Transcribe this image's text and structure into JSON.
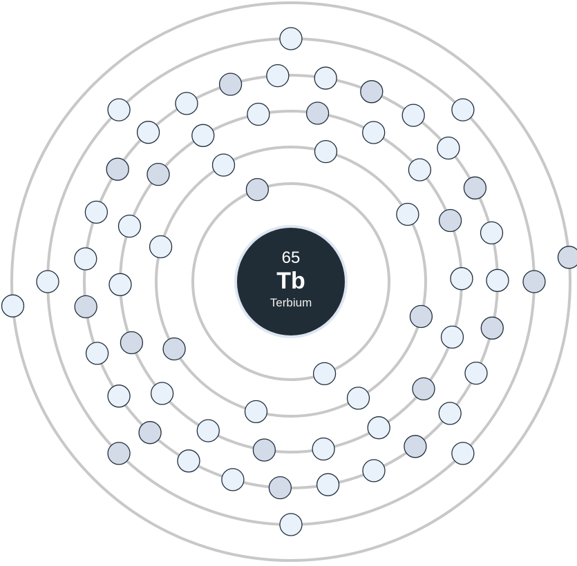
{
  "element": {
    "atomic_number": "65",
    "symbol": "Tb",
    "name": "Terbium"
  },
  "shells": [
    {
      "electrons": 2,
      "phase_deg": 250
    },
    {
      "electrons": 8,
      "phase_deg": 285
    },
    {
      "electrons": 18,
      "phase_deg": 259
    },
    {
      "electrons": 27,
      "phase_deg": 293
    },
    {
      "electrons": 8,
      "phase_deg": 270
    },
    {
      "electrons": 2,
      "phase_deg": 175
    }
  ],
  "colors": {
    "shell_stroke": "#c8c8c8",
    "nucleus_fill": "#212d36",
    "nucleus_ring": "#dde6f2",
    "electron_fill_light": "#e9f1fa",
    "electron_fill_dark": "#d4dbe8",
    "electron_stroke": "#1f2d3a"
  }
}
